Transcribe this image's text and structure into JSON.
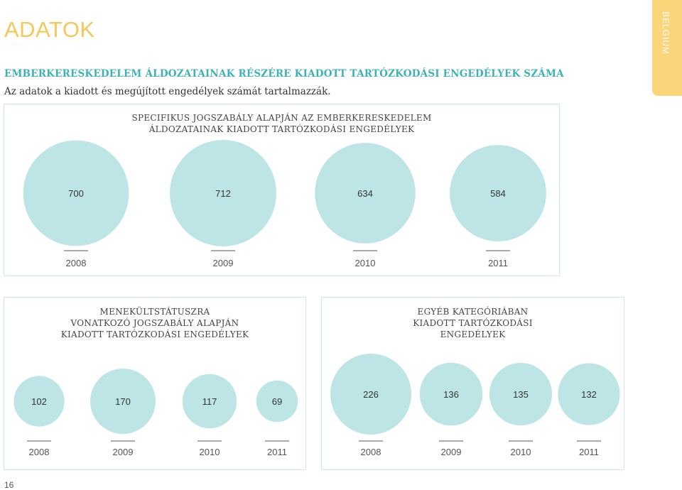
{
  "header": {
    "title": "ADATOK",
    "country_tab": "BELGIUM",
    "subtitle": "EMBERKERESKEDELEM ÁLDOZATAINAK RÉSZÉRE KIADOTT TARTÓZKODÁSI ENGEDÉLYEK SZÁMA",
    "description": "Az adatok a kiadott és megújított engedélyek számát tartalmazzák."
  },
  "page_number": "16",
  "colors": {
    "bubble": "#bde5e5",
    "title": "#f6c75a",
    "subtitle": "#3db2b6",
    "tick": "#555555",
    "panel_border": "#cfe9ea"
  },
  "chart_data": [
    {
      "type": "bubble",
      "title_lines": [
        "SPECIFIKUS JOGSZABÁLY ALAPJÁN AZ EMBERKERESKEDELEM",
        "ÁLDOZATAINAK KIADOTT TARTÓZKODÁSI ENGEDÉLYEK"
      ],
      "categories": [
        "2008",
        "2009",
        "2010",
        "2011"
      ],
      "values": [
        700,
        712,
        634,
        584
      ]
    },
    {
      "type": "bubble",
      "title_lines": [
        "MENEKÜLTSTÁTUSZRA",
        "VONATKOZÓ JOGSZABÁLY ALAPJÁN",
        "KIADOTT TARTÓZKODÁSI ENGEDÉLYEK"
      ],
      "categories": [
        "2008",
        "2009",
        "2010",
        "2011"
      ],
      "values": [
        102,
        170,
        117,
        69
      ]
    },
    {
      "type": "bubble",
      "title_lines": [
        "EGYÉB KATEGÓRIÁBAN",
        "KIADOTT TARTÓZKODÁSI",
        "ENGEDÉLYEK"
      ],
      "categories": [
        "2008",
        "2009",
        "2010",
        "2011"
      ],
      "values": [
        226,
        136,
        135,
        132
      ]
    }
  ]
}
